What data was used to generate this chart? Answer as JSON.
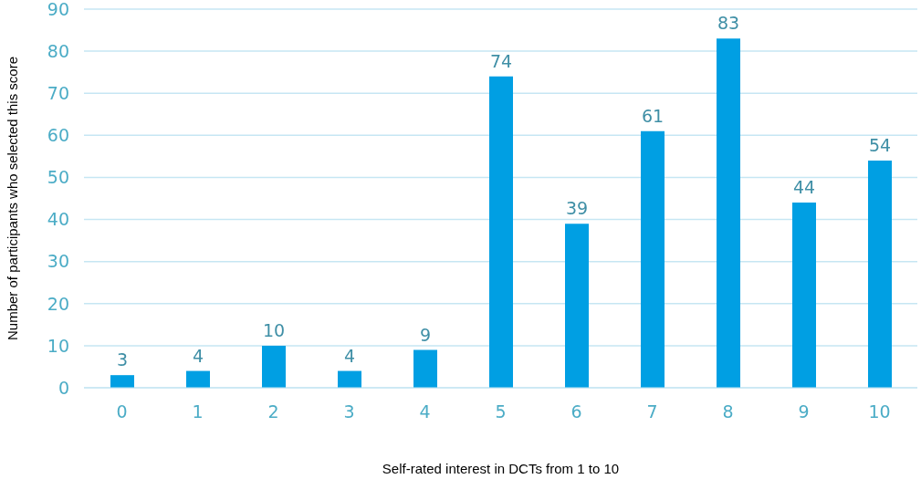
{
  "chart_data": {
    "type": "bar",
    "xlabel": "Self-rated interest in DCTs from 1 to 10",
    "ylabel": "Number of participants who selected this score",
    "categories": [
      "0",
      "1",
      "2",
      "3",
      "4",
      "5",
      "6",
      "7",
      "8",
      "9",
      "10"
    ],
    "values": [
      3,
      4,
      10,
      4,
      9,
      74,
      39,
      61,
      83,
      44,
      54
    ],
    "color": "#009fe3",
    "ylim": [
      0,
      90
    ],
    "yticks": [
      0,
      10,
      20,
      30,
      40,
      50,
      60,
      70,
      80,
      90
    ],
    "grid": "y",
    "data_labels": true
  }
}
